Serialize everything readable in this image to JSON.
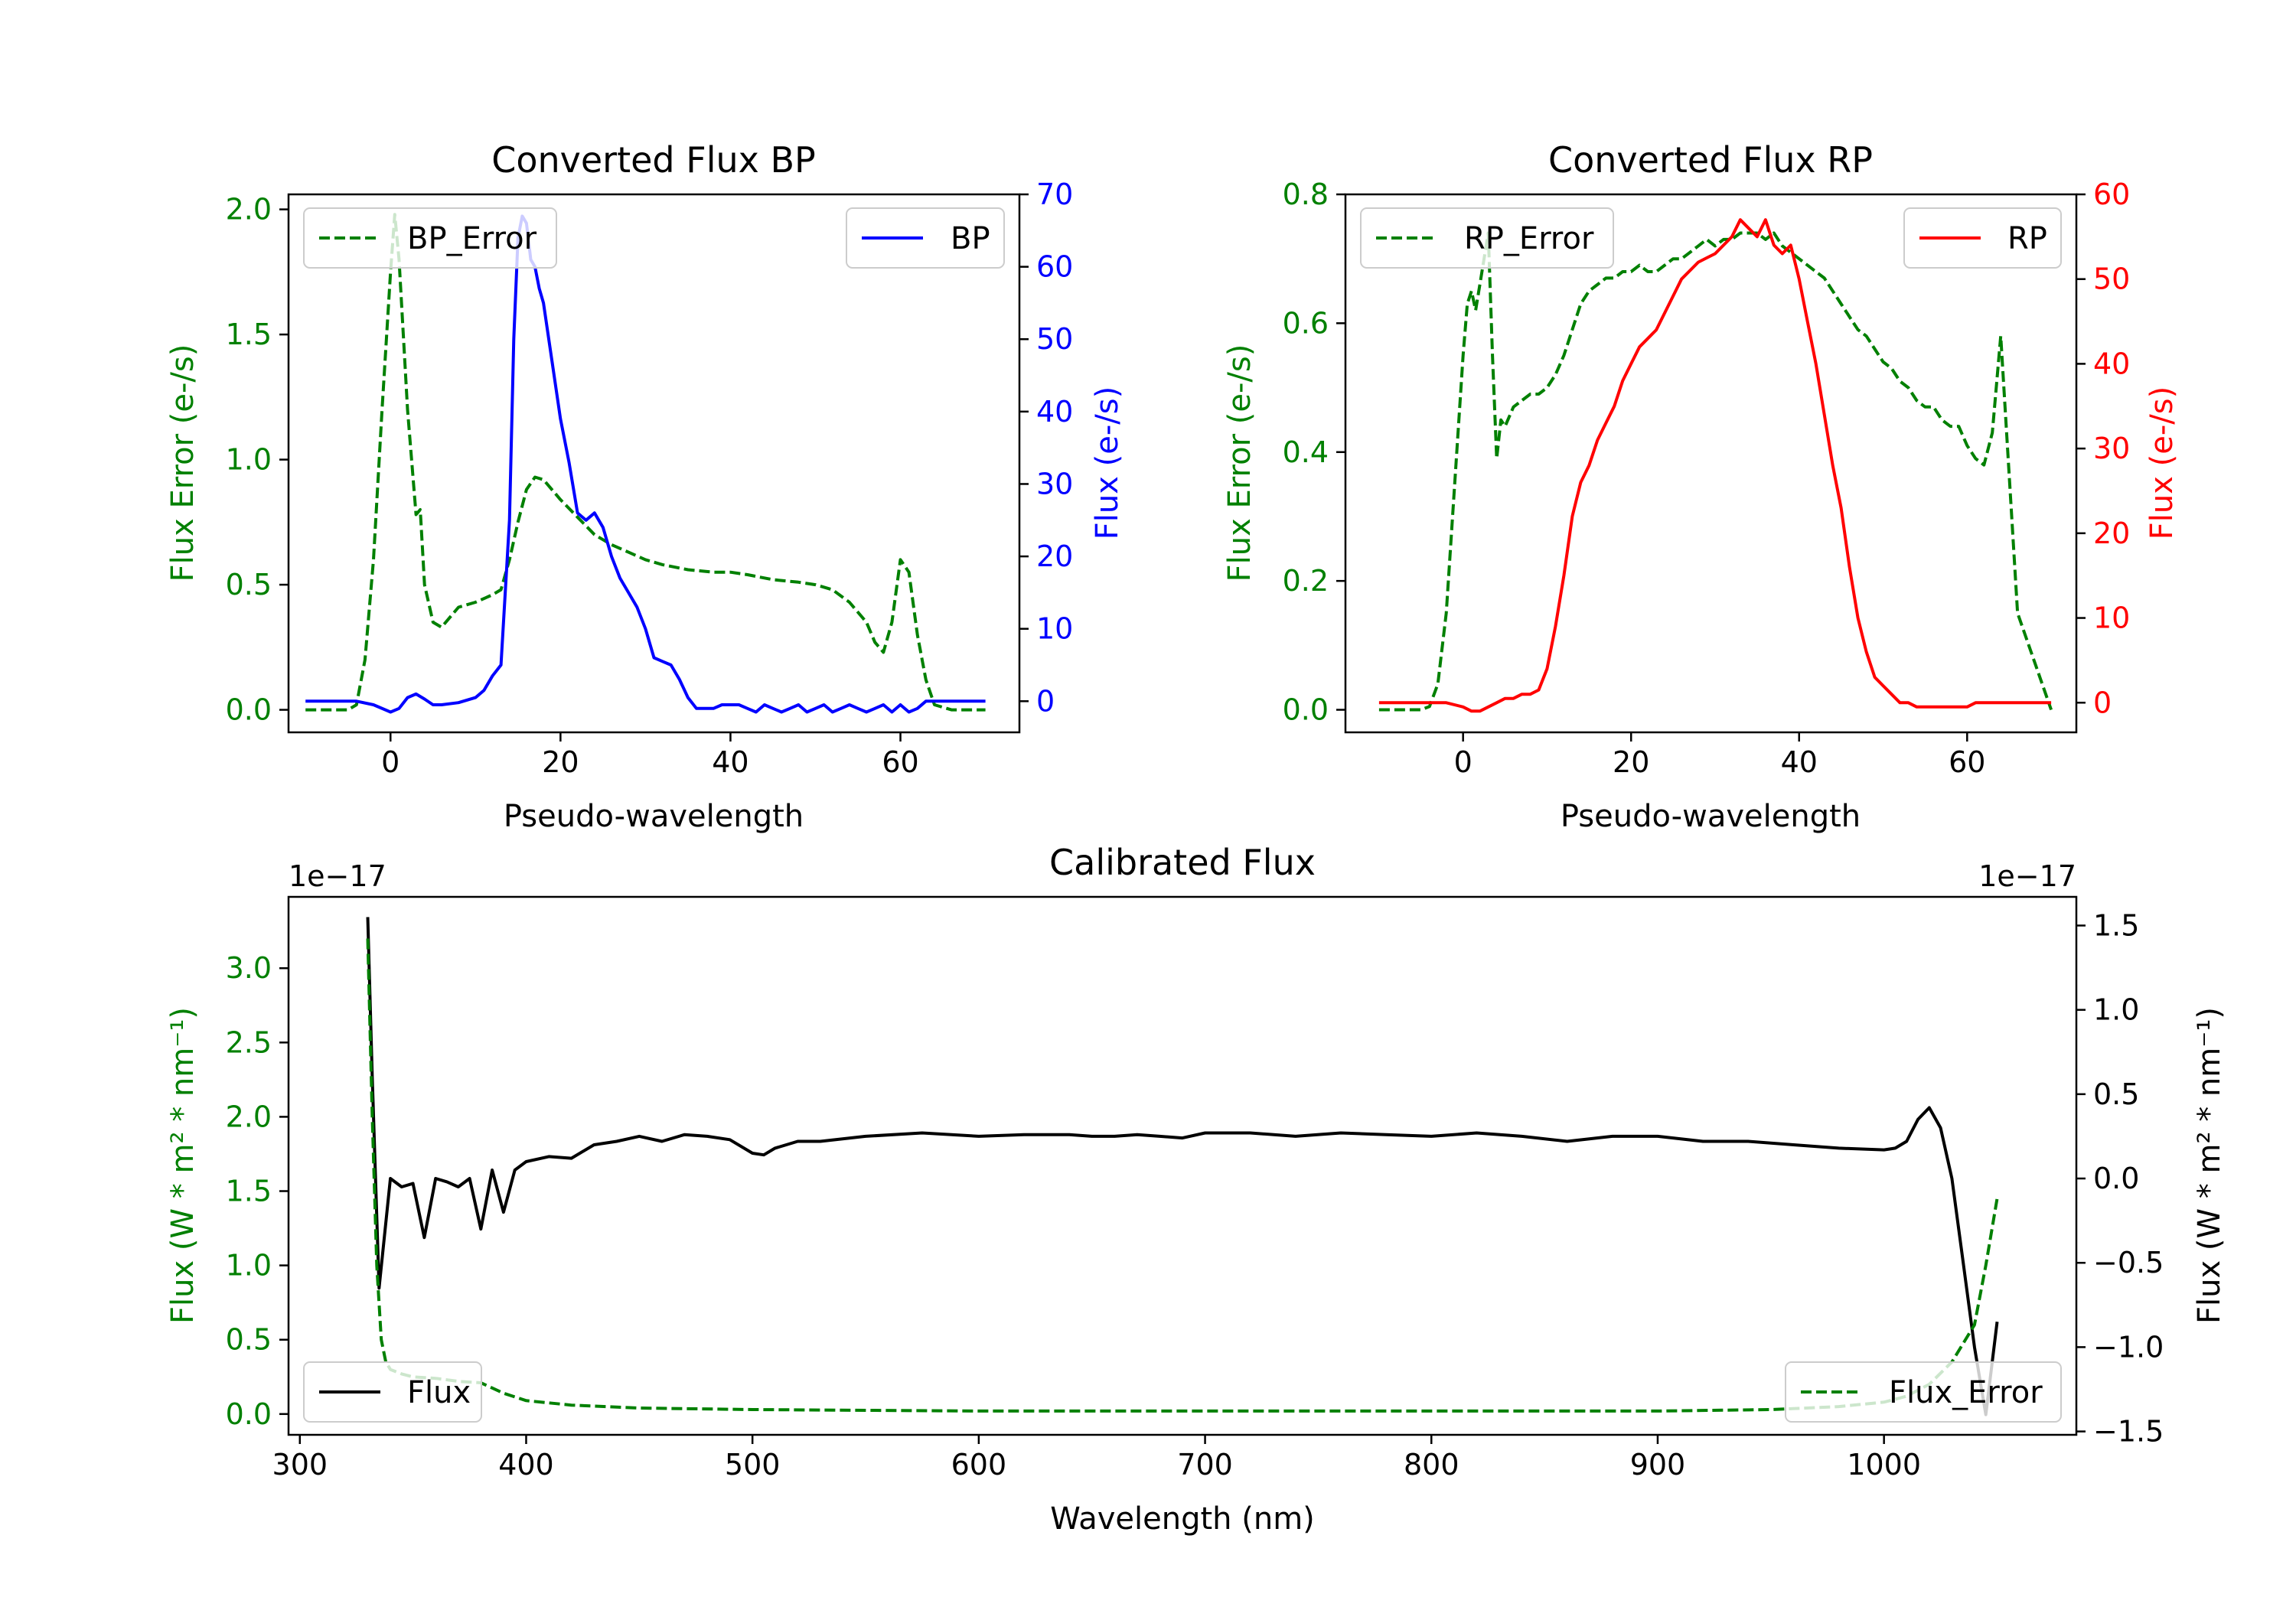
{
  "chart_data": [
    {
      "type": "line",
      "title": "Converted Flux BP",
      "xlabel": "Pseudo-wavelength",
      "ylabel_left": "Flux Error (e-/s)",
      "ylabel_right": "Flux (e-/s)",
      "xlim": [
        -12,
        74
      ],
      "ylim_left": [
        -0.09,
        2.06
      ],
      "ylim_right": [
        -4.3,
        70.0
      ],
      "xticks": [
        "0",
        "20",
        "40",
        "60"
      ],
      "yticks_left": [
        "0.0",
        "0.5",
        "1.0",
        "1.5",
        "2.0"
      ],
      "yticks_right": [
        "0",
        "10",
        "20",
        "30",
        "40",
        "50",
        "60",
        "70"
      ],
      "colors": {
        "left": "#008000",
        "right": "#0000ff"
      },
      "legend_left": {
        "label": "BP_Error",
        "placement": "upper-left"
      },
      "legend_right": {
        "label": "BP",
        "placement": "upper-right"
      },
      "series": [
        {
          "name": "BP_Error",
          "axis": "left",
          "style": "dashed",
          "x": [
            -10,
            -5,
            -4,
            -3,
            -2,
            -1,
            0,
            0.5,
            1,
            2,
            3,
            3.5,
            4,
            5,
            6,
            7,
            8,
            10,
            12,
            13,
            14,
            15,
            16,
            17,
            18,
            20,
            22,
            24,
            26,
            28,
            30,
            32,
            35,
            38,
            40,
            42,
            45,
            48,
            50,
            52,
            54,
            56,
            57,
            58,
            59,
            60,
            61,
            62,
            63,
            64,
            66,
            70
          ],
          "y": [
            0.0,
            0.0,
            0.02,
            0.2,
            0.6,
            1.2,
            1.75,
            1.98,
            1.8,
            1.2,
            0.78,
            0.8,
            0.5,
            0.35,
            0.33,
            0.37,
            0.41,
            0.43,
            0.46,
            0.48,
            0.6,
            0.75,
            0.88,
            0.93,
            0.92,
            0.84,
            0.77,
            0.7,
            0.66,
            0.63,
            0.6,
            0.58,
            0.56,
            0.55,
            0.55,
            0.54,
            0.52,
            0.51,
            0.5,
            0.48,
            0.43,
            0.35,
            0.27,
            0.23,
            0.35,
            0.6,
            0.55,
            0.3,
            0.12,
            0.02,
            0.0,
            0.0
          ]
        },
        {
          "name": "BP",
          "axis": "right",
          "style": "solid",
          "x": [
            -10,
            -4,
            -2,
            0,
            1,
            2,
            3,
            4,
            5,
            6,
            8,
            10,
            11,
            12,
            13,
            14,
            14.5,
            15,
            15.5,
            16,
            16.5,
            17,
            17.5,
            18,
            19,
            20,
            21,
            22,
            23,
            24,
            25,
            26,
            27,
            28,
            29,
            30,
            31,
            32,
            33,
            34,
            35,
            36,
            37,
            38,
            39,
            40,
            41,
            42,
            43,
            44,
            45,
            46,
            47,
            48,
            49,
            50,
            51,
            52,
            53,
            54,
            55,
            56,
            57,
            58,
            59,
            60,
            61,
            62,
            63,
            64,
            66,
            70
          ],
          "y": [
            0,
            0,
            -0.5,
            -1.5,
            -1,
            0.5,
            1,
            0.3,
            -0.5,
            -0.5,
            -0.2,
            0.5,
            1.5,
            3.5,
            5,
            25,
            50,
            64,
            67,
            66,
            61,
            60,
            57,
            55,
            47,
            39,
            33,
            26,
            25,
            26,
            24,
            20,
            17,
            15,
            13,
            10,
            6,
            5.5,
            5,
            3,
            0.5,
            -1,
            -1,
            -1,
            -0.5,
            -0.5,
            -0.5,
            -1,
            -1.5,
            -0.5,
            -1,
            -1.5,
            -1,
            -0.5,
            -1.5,
            -1,
            -0.5,
            -1.5,
            -1,
            -0.5,
            -1,
            -1.5,
            -1,
            -0.5,
            -1.5,
            -0.5,
            -1.5,
            -1,
            0,
            0,
            0,
            0
          ]
        }
      ]
    },
    {
      "type": "line",
      "title": "Converted Flux RP",
      "xlabel": "Pseudo-wavelength",
      "ylabel_left": "Flux Error (e-/s)",
      "ylabel_right": "Flux (e-/s)",
      "xlim": [
        -14,
        73
      ],
      "ylim_left": [
        -0.035,
        0.8
      ],
      "ylim_right": [
        -3.5,
        60
      ],
      "xticks": [
        "0",
        "20",
        "40",
        "60"
      ],
      "yticks_left": [
        "0.0",
        "0.2",
        "0.4",
        "0.6",
        "0.8"
      ],
      "yticks_right": [
        "0",
        "10",
        "20",
        "30",
        "40",
        "50",
        "60"
      ],
      "colors": {
        "left": "#008000",
        "right": "#ff0000"
      },
      "legend_left": {
        "label": "RP_Error",
        "placement": "upper-left"
      },
      "legend_right": {
        "label": "RP",
        "placement": "upper-right"
      },
      "series": [
        {
          "name": "RP_Error",
          "axis": "left",
          "style": "dashed",
          "x": [
            -10,
            -5,
            -4,
            -3,
            -2,
            -1,
            0,
            0.5,
            1,
            1.5,
            2,
            2.5,
            3,
            3.5,
            4,
            4.5,
            5,
            6,
            7,
            8,
            9,
            10,
            11,
            12,
            13,
            14,
            15,
            16,
            17,
            18,
            19,
            20,
            21,
            22,
            23,
            24,
            25,
            26,
            27,
            28,
            29,
            30,
            31,
            32,
            33,
            34,
            35,
            36,
            37,
            38,
            39,
            40,
            41,
            42,
            43,
            44,
            45,
            46,
            47,
            48,
            49,
            50,
            51,
            52,
            53,
            54,
            55,
            56,
            57,
            58,
            59,
            60,
            61,
            62,
            63,
            64,
            66,
            70
          ],
          "y": [
            0.0,
            0.0,
            0.005,
            0.04,
            0.15,
            0.35,
            0.55,
            0.63,
            0.65,
            0.62,
            0.66,
            0.7,
            0.74,
            0.55,
            0.39,
            0.45,
            0.44,
            0.47,
            0.48,
            0.49,
            0.49,
            0.5,
            0.52,
            0.55,
            0.59,
            0.63,
            0.65,
            0.66,
            0.67,
            0.67,
            0.68,
            0.68,
            0.69,
            0.68,
            0.68,
            0.69,
            0.7,
            0.7,
            0.71,
            0.72,
            0.73,
            0.72,
            0.73,
            0.73,
            0.74,
            0.74,
            0.74,
            0.73,
            0.74,
            0.72,
            0.71,
            0.7,
            0.69,
            0.68,
            0.67,
            0.65,
            0.63,
            0.61,
            0.59,
            0.58,
            0.56,
            0.54,
            0.53,
            0.51,
            0.5,
            0.48,
            0.47,
            0.47,
            0.45,
            0.44,
            0.44,
            0.41,
            0.39,
            0.38,
            0.43,
            0.58,
            0.15,
            0.0
          ]
        },
        {
          "name": "RP",
          "axis": "right",
          "style": "solid",
          "x": [
            -10,
            -2,
            0,
            1,
            2,
            3,
            4,
            5,
            6,
            7,
            8,
            9,
            10,
            11,
            12,
            13,
            14,
            15,
            16,
            17,
            18,
            19,
            20,
            21,
            22,
            23,
            24,
            25,
            26,
            27,
            28,
            29,
            30,
            31,
            32,
            33,
            34,
            35,
            36,
            37,
            38,
            39,
            40,
            41,
            42,
            43,
            44,
            45,
            46,
            47,
            48,
            49,
            50,
            51,
            52,
            53,
            54,
            55,
            56,
            57,
            58,
            59,
            60,
            61,
            62,
            63,
            64,
            66,
            70
          ],
          "y": [
            0,
            0,
            -0.5,
            -1,
            -1,
            -0.5,
            0,
            0.5,
            0.5,
            1,
            1,
            1.5,
            4,
            9,
            15,
            22,
            26,
            28,
            31,
            33,
            35,
            38,
            40,
            42,
            43,
            44,
            46,
            48,
            50,
            51,
            52,
            52.5,
            53,
            54,
            55,
            57,
            56,
            55,
            57,
            54,
            53,
            54,
            50,
            45,
            40,
            34,
            28,
            23,
            16,
            10,
            6,
            3,
            2,
            1,
            0,
            0,
            -0.5,
            -0.5,
            -0.5,
            -0.5,
            -0.5,
            -0.5,
            -0.5,
            0,
            0,
            0,
            0,
            0,
            0
          ]
        }
      ]
    },
    {
      "type": "line",
      "title": "Calibrated Flux",
      "xlabel": "Wavelength (nm)",
      "ylabel_left": "Flux (W * m² * nm⁻¹)",
      "ylabel_right": "Flux (W * m² * nm⁻¹)",
      "offset_left": "1e−17",
      "offset_right": "1e−17",
      "xlim": [
        295,
        1085
      ],
      "ylim_left": [
        -0.14,
        3.48
      ],
      "ylim_right": [
        -1.52,
        1.67
      ],
      "xticks": [
        "300",
        "400",
        "500",
        "600",
        "700",
        "800",
        "900",
        "1000"
      ],
      "yticks_left": [
        "0.0",
        "0.5",
        "1.0",
        "1.5",
        "2.0",
        "2.5",
        "3.0"
      ],
      "yticks_right": [
        "−1.5",
        "−1.0",
        "−0.5",
        "0.0",
        "0.5",
        "1.0",
        "1.5"
      ],
      "colors": {
        "left": "#008000",
        "right": "#000000"
      },
      "legend_left": {
        "label": "Flux",
        "placement": "lower-left"
      },
      "legend_right": {
        "label": "Flux_Error",
        "placement": "lower-right"
      },
      "series": [
        {
          "name": "Flux",
          "axis": "right",
          "style": "solid",
          "x": [
            330,
            332,
            335,
            340,
            345,
            350,
            355,
            360,
            365,
            370,
            375,
            380,
            385,
            390,
            395,
            400,
            410,
            420,
            430,
            440,
            450,
            460,
            470,
            480,
            490,
            500,
            505,
            510,
            520,
            530,
            550,
            575,
            600,
            620,
            640,
            650,
            660,
            670,
            680,
            690,
            700,
            720,
            740,
            760,
            780,
            800,
            820,
            840,
            860,
            880,
            900,
            920,
            940,
            960,
            980,
            1000,
            1005,
            1010,
            1015,
            1020,
            1025,
            1030,
            1035,
            1040,
            1045,
            1050
          ],
          "y": [
            1.55,
            0.6,
            -0.65,
            0.0,
            -0.05,
            -0.03,
            -0.35,
            0.0,
            -0.02,
            -0.05,
            0.0,
            -0.3,
            0.05,
            -0.2,
            0.05,
            0.1,
            0.13,
            0.12,
            0.2,
            0.22,
            0.25,
            0.22,
            0.26,
            0.25,
            0.23,
            0.15,
            0.14,
            0.18,
            0.22,
            0.22,
            0.25,
            0.27,
            0.25,
            0.26,
            0.26,
            0.25,
            0.25,
            0.26,
            0.25,
            0.24,
            0.27,
            0.27,
            0.25,
            0.27,
            0.26,
            0.25,
            0.27,
            0.25,
            0.22,
            0.25,
            0.25,
            0.22,
            0.22,
            0.2,
            0.18,
            0.17,
            0.18,
            0.22,
            0.35,
            0.42,
            0.3,
            0.0,
            -0.5,
            -1.0,
            -1.4,
            -0.85
          ]
        },
        {
          "name": "Flux_Error",
          "axis": "left",
          "style": "dashed",
          "x": [
            330,
            332,
            334,
            336,
            338,
            340,
            345,
            350,
            360,
            370,
            380,
            390,
            400,
            420,
            450,
            500,
            600,
            700,
            800,
            900,
            950,
            980,
            1000,
            1010,
            1020,
            1030,
            1040,
            1045,
            1050
          ],
          "y": [
            3.2,
            2.0,
            1.0,
            0.5,
            0.35,
            0.3,
            0.27,
            0.25,
            0.24,
            0.22,
            0.21,
            0.14,
            0.09,
            0.06,
            0.04,
            0.03,
            0.02,
            0.02,
            0.02,
            0.02,
            0.03,
            0.05,
            0.08,
            0.12,
            0.2,
            0.35,
            0.6,
            1.0,
            1.45
          ]
        }
      ]
    }
  ]
}
